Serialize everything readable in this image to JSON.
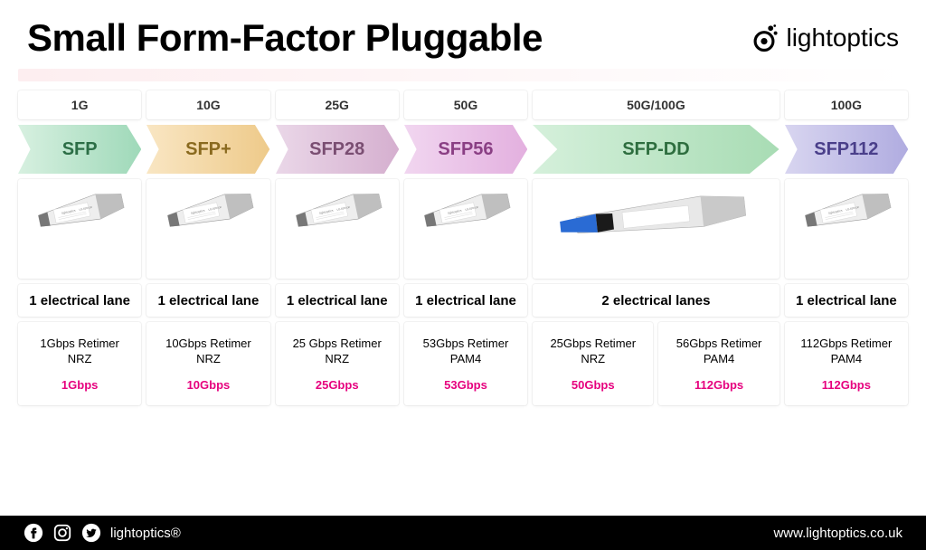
{
  "title": "Small Form-Factor Pluggable",
  "brand": "lightoptics",
  "footer": {
    "handle": "lightoptics®",
    "url": "www.lightoptics.co.uk"
  },
  "columns": [
    {
      "span": 1,
      "top_rate": "1G",
      "arrow": {
        "label": "SFP",
        "gradient": [
          "#d7f0e0",
          "#9fd9b9"
        ],
        "text_color": "#2c6e46"
      },
      "image_type": "sfp_std",
      "lanes": "1 electrical lane",
      "retimers": [
        {
          "line1": "1Gbps Retimer",
          "enc": "NRZ",
          "bw": "1Gbps"
        }
      ]
    },
    {
      "span": 1,
      "top_rate": "10G",
      "arrow": {
        "label": "SFP+",
        "gradient": [
          "#f9e6c3",
          "#eeca8a"
        ],
        "text_color": "#8a6a1f"
      },
      "image_type": "sfp_std",
      "lanes": "1 electrical lane",
      "retimers": [
        {
          "line1": "10Gbps Retimer",
          "enc": "NRZ",
          "bw": "10Gbps"
        }
      ]
    },
    {
      "span": 1,
      "top_rate": "25G",
      "arrow": {
        "label": "SFP28",
        "gradient": [
          "#ead7e8",
          "#d5afcf"
        ],
        "text_color": "#7a4e72"
      },
      "image_type": "sfp_std",
      "lanes": "1 electrical lane",
      "retimers": [
        {
          "line1": "25 Gbps Retimer",
          "enc": "NRZ",
          "bw": "25Gbps"
        }
      ]
    },
    {
      "span": 1,
      "top_rate": "50G",
      "arrow": {
        "label": "SFP56",
        "gradient": [
          "#f1d6f0",
          "#e3b0df"
        ],
        "text_color": "#8a3f84"
      },
      "image_type": "sfp_std",
      "lanes": "1 electrical lane",
      "retimers": [
        {
          "line1": "53Gbps Retimer",
          "enc": "PAM4",
          "bw": "53Gbps"
        }
      ]
    },
    {
      "span": 2,
      "top_rate": "50G/100G",
      "arrow": {
        "label": "SFP-DD",
        "gradient": [
          "#d5f0db",
          "#a8dcb4"
        ],
        "text_color": "#2e6e3f"
      },
      "image_type": "sfp_dd",
      "lanes": "2 electrical lanes",
      "retimers": [
        {
          "line1": "25Gbps Retimer",
          "enc": "NRZ",
          "bw": "50Gbps"
        },
        {
          "line1": "56Gbps Retimer",
          "enc": "PAM4",
          "bw": "112Gbps"
        }
      ]
    },
    {
      "span": 1,
      "top_rate": "100G",
      "arrow": {
        "label": "SFP112",
        "gradient": [
          "#d8d5f0",
          "#b0ace0"
        ],
        "text_color": "#4a3f8a"
      },
      "image_type": "sfp_std",
      "lanes": "1 electrical lane",
      "retimers": [
        {
          "line1": "112Gbps Retimer",
          "enc": "PAM4",
          "bw": "112Gbps"
        }
      ]
    }
  ],
  "style": {
    "background": "#ffffff",
    "title_color": "#000000",
    "title_fontsize": 42,
    "cell_shadow": "rgba(0,0,0,0.06)",
    "bw_color": "#e6007e",
    "footer_bg": "#000000",
    "footer_text": "#ffffff",
    "pink_band": "#fdeef0",
    "sfp_body_light": "#eeeeee",
    "sfp_body_dark": "#bfbfbf",
    "sfp_label": "#888888",
    "sfp_dd_body": "#e8e8e8",
    "sfp_dd_tab": "#2a6bd4"
  }
}
